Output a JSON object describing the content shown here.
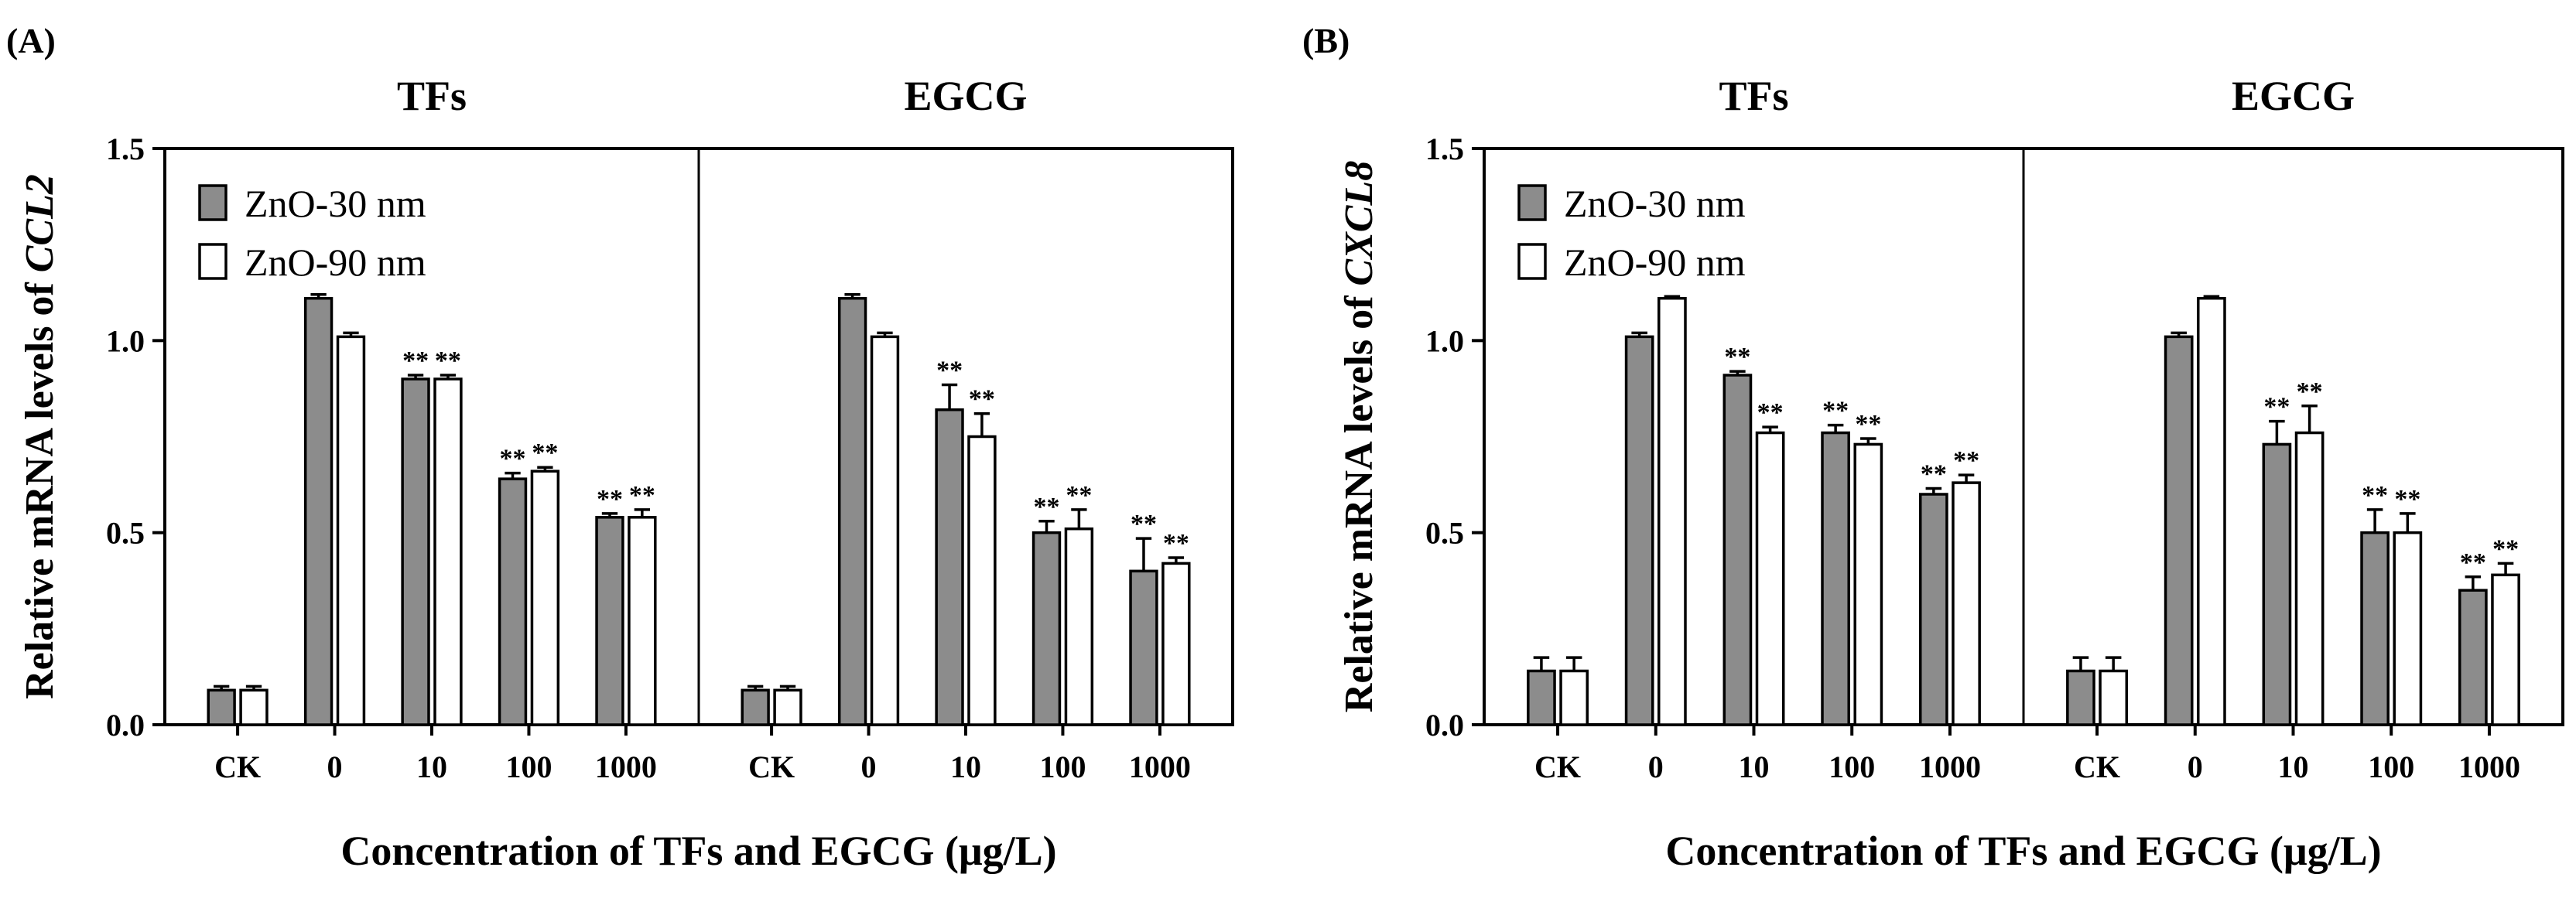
{
  "colors": {
    "zno30": "#8c8c8c",
    "zno90": "#ffffff",
    "stroke": "#000000"
  },
  "chart_data": [
    {
      "panel": "(A)",
      "type": "bar",
      "groups": [
        "TFs",
        "EGCG"
      ],
      "categories": [
        "CK",
        "0",
        "10",
        "100",
        "1000"
      ],
      "ylabel_prefix": "Relative mRNA levels of ",
      "ylabel_gene": "CCL2",
      "xlabel": "Concentration of TFs and EGCG (μg/L)",
      "ylim": [
        0,
        1.5
      ],
      "yticks": [
        "0.0",
        "0.5",
        "1.0",
        "1.5"
      ],
      "legend_position": "top-left",
      "grid": false,
      "series": [
        {
          "name": "ZnO-30 nm",
          "values": [
            [
              0.09,
              1.11,
              0.9,
              0.64,
              0.54
            ],
            [
              0.09,
              1.11,
              0.82,
              0.5,
              0.4
            ]
          ],
          "errors": [
            [
              0.01,
              0.01,
              0.01,
              0.015,
              0.01
            ],
            [
              0.01,
              0.01,
              0.065,
              0.03,
              0.085
            ]
          ],
          "sig": [
            [
              "",
              "",
              "**",
              "**",
              "**"
            ],
            [
              "",
              "",
              "**",
              "**",
              "**"
            ]
          ]
        },
        {
          "name": "ZnO-90 nm",
          "values": [
            [
              0.09,
              1.01,
              0.9,
              0.66,
              0.54
            ],
            [
              0.09,
              1.01,
              0.75,
              0.51,
              0.42
            ]
          ],
          "errors": [
            [
              0.01,
              0.01,
              0.01,
              0.01,
              0.02
            ],
            [
              0.01,
              0.01,
              0.06,
              0.05,
              0.015
            ]
          ],
          "sig": [
            [
              "",
              "",
              "**",
              "**",
              "**"
            ],
            [
              "",
              "",
              "**",
              "**",
              "**"
            ]
          ]
        }
      ]
    },
    {
      "panel": "(B)",
      "type": "bar",
      "groups": [
        "TFs",
        "EGCG"
      ],
      "categories": [
        "CK",
        "0",
        "10",
        "100",
        "1000"
      ],
      "ylabel_prefix": "Relative mRNA levels of ",
      "ylabel_gene": "CXCL8",
      "xlabel": "Concentration of TFs and EGCG (μg/L)",
      "ylim": [
        0,
        1.5
      ],
      "yticks": [
        "0.0",
        "0.5",
        "1.0",
        "1.5"
      ],
      "legend_position": "top-left",
      "grid": false,
      "series": [
        {
          "name": "ZnO-30 nm",
          "values": [
            [
              0.14,
              1.01,
              0.91,
              0.76,
              0.6
            ],
            [
              0.14,
              1.01,
              0.73,
              0.5,
              0.35
            ]
          ],
          "errors": [
            [
              0.035,
              0.01,
              0.01,
              0.02,
              0.015
            ],
            [
              0.035,
              0.01,
              0.06,
              0.06,
              0.035
            ]
          ],
          "sig": [
            [
              "",
              "",
              "**",
              "**",
              "**"
            ],
            [
              "",
              "",
              "**",
              "**",
              "**"
            ]
          ]
        },
        {
          "name": "ZnO-90 nm",
          "values": [
            [
              0.14,
              1.11,
              0.76,
              0.73,
              0.63
            ],
            [
              0.14,
              1.11,
              0.76,
              0.5,
              0.39
            ]
          ],
          "errors": [
            [
              0.035,
              0.005,
              0.015,
              0.015,
              0.02
            ],
            [
              0.035,
              0.005,
              0.07,
              0.05,
              0.03
            ]
          ],
          "sig": [
            [
              "",
              "",
              "**",
              "**",
              "**"
            ],
            [
              "",
              "",
              "**",
              "**",
              "**"
            ]
          ]
        }
      ]
    }
  ]
}
